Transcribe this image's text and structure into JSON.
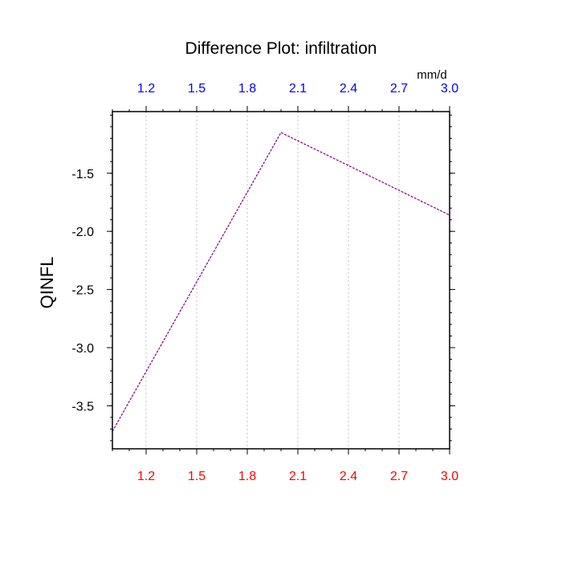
{
  "chart_data": {
    "type": "line",
    "title": "Difference Plot: infiltration",
    "ylabel": "QINFL",
    "units_label": "mm/d",
    "x": [
      1.0,
      2.0,
      3.0
    ],
    "series": [
      {
        "values": [
          -3.72,
          -1.15,
          -1.86
        ]
      }
    ],
    "xlim": [
      1.0,
      3.0
    ],
    "ylim": [
      -3.87,
      -0.97
    ],
    "x_ticks": [
      1.2,
      1.5,
      1.8,
      2.1,
      2.4,
      2.7,
      3.0
    ],
    "x_tick_labels": [
      "1.2",
      "1.5",
      "1.8",
      "2.1",
      "2.4",
      "2.7",
      "3.0"
    ],
    "y_ticks": [
      -1.5,
      -2.0,
      -2.5,
      -3.0,
      -3.5
    ],
    "y_tick_labels": [
      "-1.5",
      "-2.0",
      "-2.5",
      "-3.0",
      "-3.5"
    ],
    "y_minor_step": 0.1,
    "x_minor_step": 0.1,
    "grid": {
      "x": true,
      "y": false,
      "style": "dotted"
    },
    "colors": {
      "bottom_tick_labels": "#ff0000",
      "top_tick_labels": "#0000ff",
      "line": "#800080",
      "text": "#000000",
      "grid": "#c0c0c0"
    }
  }
}
